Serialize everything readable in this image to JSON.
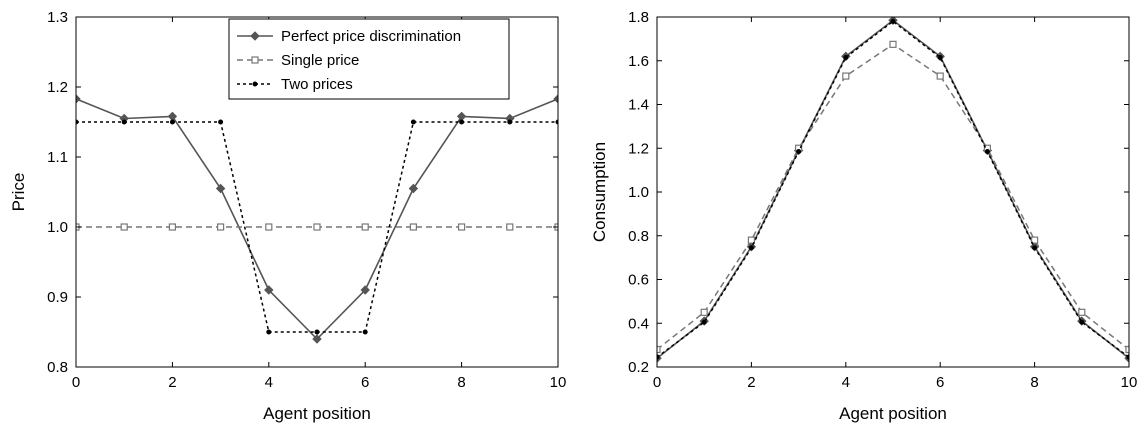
{
  "chart_data": [
    {
      "type": "line",
      "xlabel": "Agent position",
      "ylabel": "Price",
      "xlim": [
        0,
        10
      ],
      "ylim": [
        0.8,
        1.3
      ],
      "xticks": [
        "0",
        "2",
        "4",
        "6",
        "8",
        "10"
      ],
      "yticks": [
        "0.8",
        "0.9",
        "1.0",
        "1.1",
        "1.2",
        "1.3"
      ],
      "grid": false,
      "legend": "top-center",
      "series": [
        {
          "name": "Perfect price discrimination",
          "x": [
            0,
            1,
            2,
            3,
            4,
            5,
            6,
            7,
            8,
            9,
            10
          ],
          "y": [
            1.183,
            1.155,
            1.158,
            1.055,
            0.91,
            0.84,
            0.91,
            1.055,
            1.158,
            1.155,
            1.183
          ],
          "color": "#555555",
          "style": "solid",
          "marker": "diamond"
        },
        {
          "name": "Single price",
          "x": [
            0,
            1,
            2,
            3,
            4,
            5,
            6,
            7,
            8,
            9,
            10
          ],
          "y": [
            1.0,
            1.0,
            1.0,
            1.0,
            1.0,
            1.0,
            1.0,
            1.0,
            1.0,
            1.0,
            1.0
          ],
          "color": "#777777",
          "style": "dashed",
          "marker": "square"
        },
        {
          "name": "Two prices",
          "x": [
            0,
            1,
            2,
            3,
            4,
            5,
            6,
            7,
            8,
            9,
            10
          ],
          "y": [
            1.15,
            1.15,
            1.15,
            1.15,
            0.85,
            0.85,
            0.85,
            1.15,
            1.15,
            1.15,
            1.15
          ],
          "color": "#000000",
          "style": "dotted",
          "marker": "dot"
        }
      ]
    },
    {
      "type": "line",
      "xlabel": "Agent position",
      "ylabel": "Consumption",
      "xlim": [
        0,
        10
      ],
      "ylim": [
        0.2,
        1.8
      ],
      "xticks": [
        "0",
        "2",
        "4",
        "6",
        "8",
        "10"
      ],
      "yticks": [
        "0.2",
        "0.4",
        "0.6",
        "0.8",
        "1.0",
        "1.2",
        "1.4",
        "1.6",
        "1.8"
      ],
      "grid": false,
      "series": [
        {
          "x": [
            0,
            1,
            2,
            3,
            4,
            5,
            6,
            7,
            8,
            9,
            10
          ],
          "y": [
            0.24,
            0.41,
            0.75,
            1.19,
            1.62,
            1.785,
            1.62,
            1.19,
            0.75,
            0.41,
            0.24
          ],
          "color": "#555555",
          "style": "solid",
          "marker": "diamond"
        },
        {
          "x": [
            0,
            1,
            2,
            3,
            4,
            5,
            6,
            7,
            8,
            9,
            10
          ],
          "y": [
            0.28,
            0.45,
            0.78,
            1.2,
            1.53,
            1.675,
            1.53,
            1.2,
            0.78,
            0.45,
            0.28
          ],
          "color": "#777777",
          "style": "dashed",
          "marker": "square"
        },
        {
          "x": [
            0,
            1,
            2,
            3,
            4,
            5,
            6,
            7,
            8,
            9,
            10
          ],
          "y": [
            0.245,
            0.405,
            0.745,
            1.185,
            1.615,
            1.78,
            1.615,
            1.185,
            0.745,
            0.405,
            0.245
          ],
          "color": "#000000",
          "style": "dotted",
          "marker": "dot"
        }
      ]
    }
  ]
}
